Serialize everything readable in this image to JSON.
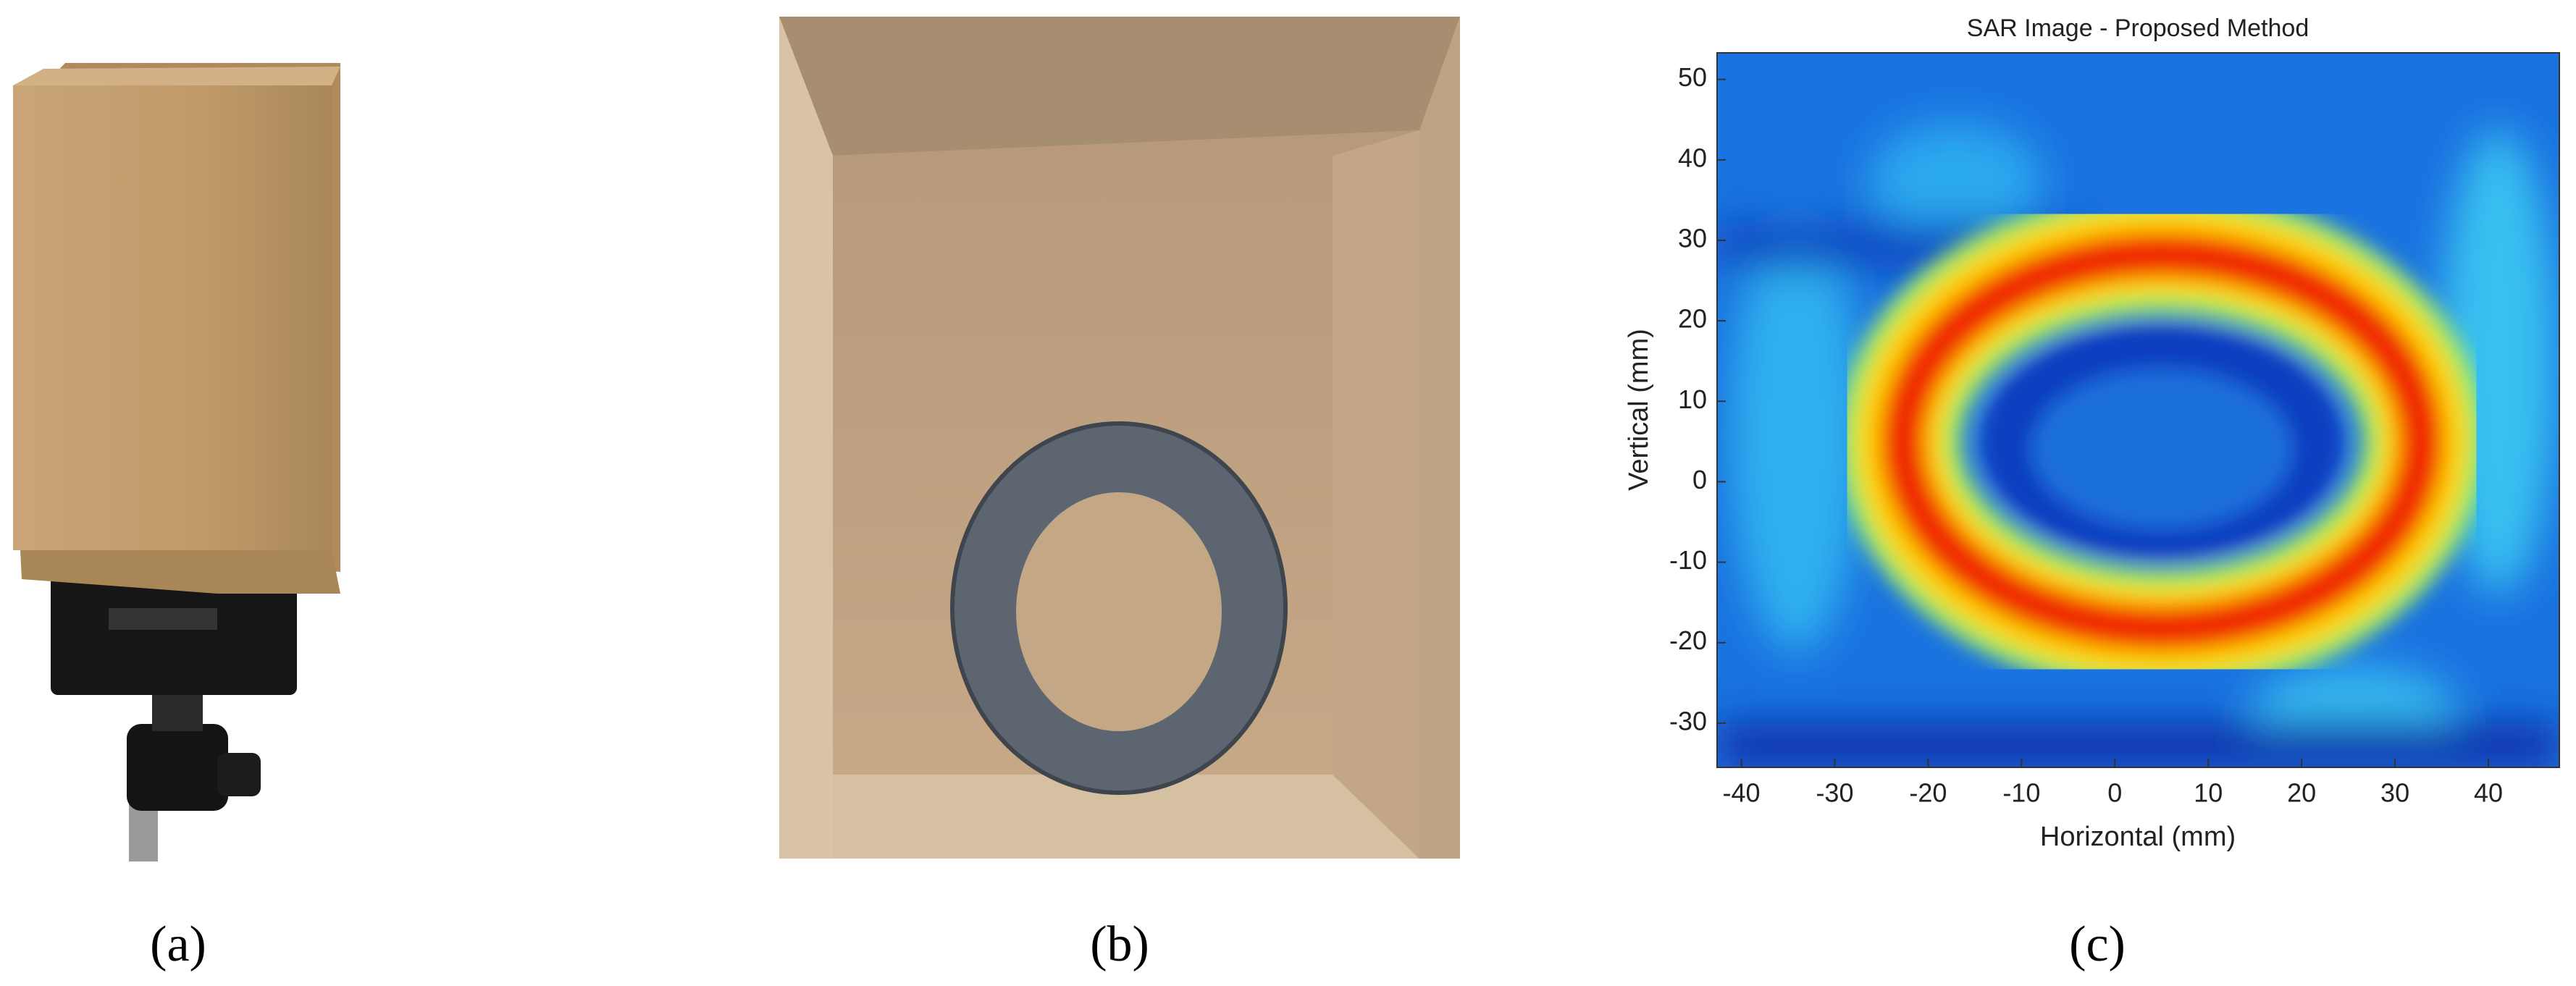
{
  "panels": [
    {
      "label": "(a)"
    },
    {
      "label": "(b)"
    },
    {
      "label": "(c)"
    }
  ],
  "sar_image": {
    "title": "SAR Image - Proposed Method",
    "xlabel": "Horizontal (mm)",
    "ylabel": "Vertical (mm)",
    "xlim": [
      -42.6,
      47.6
    ],
    "ylim": [
      -35.5,
      53.3
    ],
    "xticks": [
      -40,
      -30,
      -20,
      -10,
      0,
      10,
      20,
      30,
      40
    ],
    "yticks": [
      -30,
      -20,
      -10,
      0,
      10,
      20,
      30,
      40,
      50
    ]
  }
}
